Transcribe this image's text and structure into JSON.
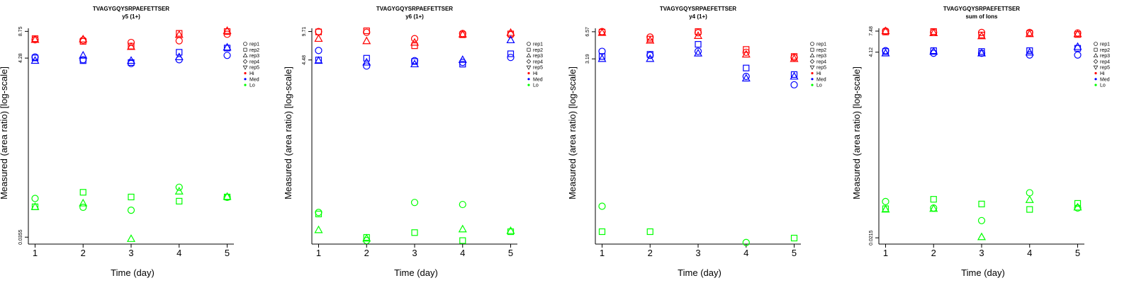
{
  "colors": {
    "Hi": "#ff0000",
    "Med": "#0000ff",
    "Lo": "#00ff00"
  },
  "legend": {
    "shapes": [
      {
        "label": "rep1",
        "marker": "circle"
      },
      {
        "label": "rep2",
        "marker": "square"
      },
      {
        "label": "rep3",
        "marker": "triangle-up"
      },
      {
        "label": "rep4",
        "marker": "diamond"
      },
      {
        "label": "rep5",
        "marker": "triangle-down"
      }
    ],
    "groups": [
      "Hi",
      "Med",
      "Lo"
    ]
  },
  "chart_data": [
    {
      "type": "scatter",
      "title": "TVAGYGQYSRPAEFETTSER",
      "subtitle": "y5 (1+)",
      "xlabel": "Time (day)",
      "ylabel": "Measured (area ratio) [log-scale]",
      "yscale": "log",
      "x_ticks": [
        1,
        2,
        3,
        4,
        5
      ],
      "y_ticks": [
        {
          "value": 0.0355,
          "label": "0.0355"
        },
        {
          "value": 4.28,
          "label": "4.28"
        },
        {
          "value": 8.75,
          "label": "8.75"
        }
      ],
      "ylim": [
        0.0295,
        9.5
      ],
      "grid": false,
      "legend_position": "right",
      "series": [
        {
          "group": "Hi",
          "rep": "rep1",
          "x": [
            1,
            2,
            3,
            4,
            5
          ],
          "y": [
            7.0,
            6.9,
            6.5,
            6.8,
            8.1
          ]
        },
        {
          "group": "Hi",
          "rep": "rep2",
          "x": [
            1,
            2,
            3,
            4,
            5
          ],
          "y": [
            7.2,
            6.7,
            5.9,
            8.3,
            8.7
          ]
        },
        {
          "group": "Hi",
          "rep": "rep3",
          "x": [
            1,
            2,
            3,
            4,
            5
          ],
          "y": [
            7.0,
            7.1,
            5.8,
            8.0,
            8.9
          ]
        },
        {
          "group": "Med",
          "rep": "rep1",
          "x": [
            1,
            2,
            3,
            4,
            5
          ],
          "y": [
            4.4,
            4.1,
            3.7,
            4.1,
            4.6
          ]
        },
        {
          "group": "Med",
          "rep": "rep2",
          "x": [
            1,
            2,
            3,
            4,
            5
          ],
          "y": [
            4.3,
            4.0,
            3.8,
            5.0,
            5.6
          ]
        },
        {
          "group": "Med",
          "rep": "rep3",
          "x": [
            1,
            2,
            3,
            4,
            5
          ],
          "y": [
            4.0,
            4.6,
            4.0,
            4.4,
            5.7
          ]
        },
        {
          "group": "Lo",
          "rep": "rep1",
          "x": [
            1,
            2,
            3,
            4,
            5
          ],
          "y": [
            0.1,
            0.079,
            0.073,
            0.135,
            0.103
          ]
        },
        {
          "group": "Lo",
          "rep": "rep2",
          "x": [
            1,
            2,
            3,
            4,
            5
          ],
          "y": [
            0.08,
            0.118,
            0.104,
            0.093,
            0.104
          ]
        },
        {
          "group": "Lo",
          "rep": "rep3",
          "x": [
            1,
            2,
            3,
            4,
            5
          ],
          "y": [
            0.08,
            0.088,
            0.034,
            0.121,
            0.105
          ]
        }
      ]
    },
    {
      "type": "scatter",
      "title": "TVAGYGQYSRPAEFETTSER",
      "subtitle": "y6 (1+)",
      "xlabel": "Time (day)",
      "ylabel": "Measured (area ratio) [log-scale]",
      "yscale": "log",
      "x_ticks": [
        1,
        2,
        3,
        4,
        5
      ],
      "y_ticks": [
        {
          "value": 4.48,
          "label": "4.48"
        },
        {
          "value": 9.71,
          "label": "9.71"
        }
      ],
      "ylim": [
        0.03,
        10.6
      ],
      "grid": false,
      "legend_position": "right",
      "series": [
        {
          "group": "Hi",
          "rep": "rep1",
          "x": [
            1,
            2,
            3,
            4,
            5
          ],
          "y": [
            9.7,
            9.5,
            8.0,
            9.2,
            8.9
          ]
        },
        {
          "group": "Hi",
          "rep": "rep2",
          "x": [
            1,
            2,
            3,
            4,
            5
          ],
          "y": [
            9.6,
            9.9,
            6.6,
            8.9,
            9.1
          ]
        },
        {
          "group": "Hi",
          "rep": "rep3",
          "x": [
            1,
            2,
            3,
            4,
            5
          ],
          "y": [
            8.0,
            7.5,
            7.2,
            9.0,
            9.4
          ]
        },
        {
          "group": "Med",
          "rep": "rep1",
          "x": [
            1,
            2,
            3,
            4,
            5
          ],
          "y": [
            5.8,
            3.8,
            4.4,
            4.2,
            4.8
          ]
        },
        {
          "group": "Med",
          "rep": "rep2",
          "x": [
            1,
            2,
            3,
            4,
            5
          ],
          "y": [
            4.48,
            4.7,
            4.3,
            4.0,
            5.3
          ]
        },
        {
          "group": "Med",
          "rep": "rep3",
          "x": [
            1,
            2,
            3,
            4,
            5
          ],
          "y": [
            4.4,
            4.2,
            4.0,
            4.5,
            7.7
          ]
        },
        {
          "group": "Lo",
          "rep": "rep1",
          "x": [
            1,
            2,
            3,
            4
          ],
          "y": [
            0.071,
            0.033,
            0.093,
            0.088
          ]
        },
        {
          "group": "Lo",
          "rep": "rep2",
          "x": [
            1,
            2,
            3,
            4,
            5
          ],
          "y": [
            0.068,
            0.036,
            0.041,
            0.033,
            0.042
          ]
        },
        {
          "group": "Lo",
          "rep": "rep3",
          "x": [
            1,
            2,
            4,
            5
          ],
          "y": [
            0.044,
            0.035,
            0.045,
            0.043
          ]
        }
      ]
    },
    {
      "type": "scatter",
      "title": "TVAGYGQYSRPAEFETTSER",
      "subtitle": "y4 (1+)",
      "xlabel": "Time (day)",
      "ylabel": "Measured (area ratio) [log-scale]",
      "yscale": "log",
      "x_ticks": [
        1,
        2,
        3,
        4,
        5
      ],
      "y_ticks": [
        {
          "value": 3.19,
          "label": "3.19"
        },
        {
          "value": 6.57,
          "label": "6.57"
        }
      ],
      "ylim": [
        0.023,
        7.2
      ],
      "grid": false,
      "legend_position": "right",
      "series": [
        {
          "group": "Hi",
          "rep": "rep1",
          "x": [
            1,
            2,
            3,
            4,
            5
          ],
          "y": [
            6.6,
            5.7,
            6.4,
            3.8,
            3.3
          ]
        },
        {
          "group": "Hi",
          "rep": "rep2",
          "x": [
            1,
            2,
            3,
            4,
            5
          ],
          "y": [
            6.5,
            5.4,
            6.6,
            4.1,
            3.4
          ]
        },
        {
          "group": "Hi",
          "rep": "rep3",
          "x": [
            1,
            2,
            3,
            4,
            5
          ],
          "y": [
            6.4,
            5.2,
            5.9,
            3.6,
            3.2
          ]
        },
        {
          "group": "Med",
          "rep": "rep1",
          "x": [
            1,
            2,
            3,
            4,
            5
          ],
          "y": [
            3.9,
            3.5,
            3.9,
            2.0,
            1.6
          ]
        },
        {
          "group": "Med",
          "rep": "rep2",
          "x": [
            1,
            2,
            3,
            4,
            5
          ],
          "y": [
            3.4,
            3.6,
            4.7,
            2.5,
            2.1
          ]
        },
        {
          "group": "Med",
          "rep": "rep3",
          "x": [
            1,
            2,
            3,
            4,
            5
          ],
          "y": [
            3.2,
            3.2,
            3.7,
            1.9,
            2.0
          ]
        },
        {
          "group": "Lo",
          "rep": "rep1",
          "x": [
            1,
            4
          ],
          "y": [
            0.063,
            0.024
          ]
        },
        {
          "group": "Lo",
          "rep": "rep2",
          "x": [
            1,
            2,
            5
          ],
          "y": [
            0.032,
            0.032,
            0.027
          ]
        }
      ]
    },
    {
      "type": "scatter",
      "title": "TVAGYGQYSRPAEFETTSER",
      "subtitle": "sum of Ions",
      "xlabel": "Time (day)",
      "ylabel": "Measured (area ratio) [log-scale]",
      "yscale": "log",
      "x_ticks": [
        1,
        2,
        3,
        4,
        5
      ],
      "y_ticks": [
        {
          "value": 0.0215,
          "label": "0.0215"
        },
        {
          "value": 4.12,
          "label": "4.12"
        },
        {
          "value": 7.48,
          "label": "7.48"
        }
      ],
      "ylim": [
        0.018,
        8.1
      ],
      "grid": false,
      "legend_position": "right",
      "series": [
        {
          "group": "Hi",
          "rep": "rep1",
          "x": [
            1,
            2,
            3,
            4,
            5
          ],
          "y": [
            7.5,
            7.2,
            7.2,
            7.2,
            7.1
          ]
        },
        {
          "group": "Hi",
          "rep": "rep2",
          "x": [
            1,
            2,
            3,
            4,
            5
          ],
          "y": [
            7.3,
            7.4,
            6.7,
            7.0,
            6.8
          ]
        },
        {
          "group": "Hi",
          "rep": "rep3",
          "x": [
            1,
            2,
            3,
            4,
            5
          ],
          "y": [
            7.5,
            7.1,
            6.5,
            6.9,
            6.9
          ]
        },
        {
          "group": "Med",
          "rep": "rep1",
          "x": [
            1,
            2,
            3,
            4,
            5
          ],
          "y": [
            4.3,
            4.0,
            4.0,
            3.8,
            3.8
          ]
        },
        {
          "group": "Med",
          "rep": "rep2",
          "x": [
            1,
            2,
            3,
            4,
            5
          ],
          "y": [
            4.2,
            4.3,
            4.2,
            4.3,
            4.6
          ]
        },
        {
          "group": "Med",
          "rep": "rep3",
          "x": [
            1,
            2,
            3,
            4,
            5
          ],
          "y": [
            4.0,
            4.2,
            4.0,
            4.1,
            4.8
          ]
        },
        {
          "group": "Lo",
          "rep": "rep1",
          "x": [
            1,
            2,
            3,
            4,
            5
          ],
          "y": [
            0.06,
            0.05,
            0.035,
            0.077,
            0.05
          ]
        },
        {
          "group": "Lo",
          "rep": "rep2",
          "x": [
            1,
            2,
            3,
            4,
            5
          ],
          "y": [
            0.049,
            0.064,
            0.056,
            0.048,
            0.057
          ]
        },
        {
          "group": "Lo",
          "rep": "rep3",
          "x": [
            1,
            2,
            3,
            4,
            5
          ],
          "y": [
            0.048,
            0.049,
            0.022,
            0.063,
            0.051
          ]
        }
      ]
    }
  ]
}
